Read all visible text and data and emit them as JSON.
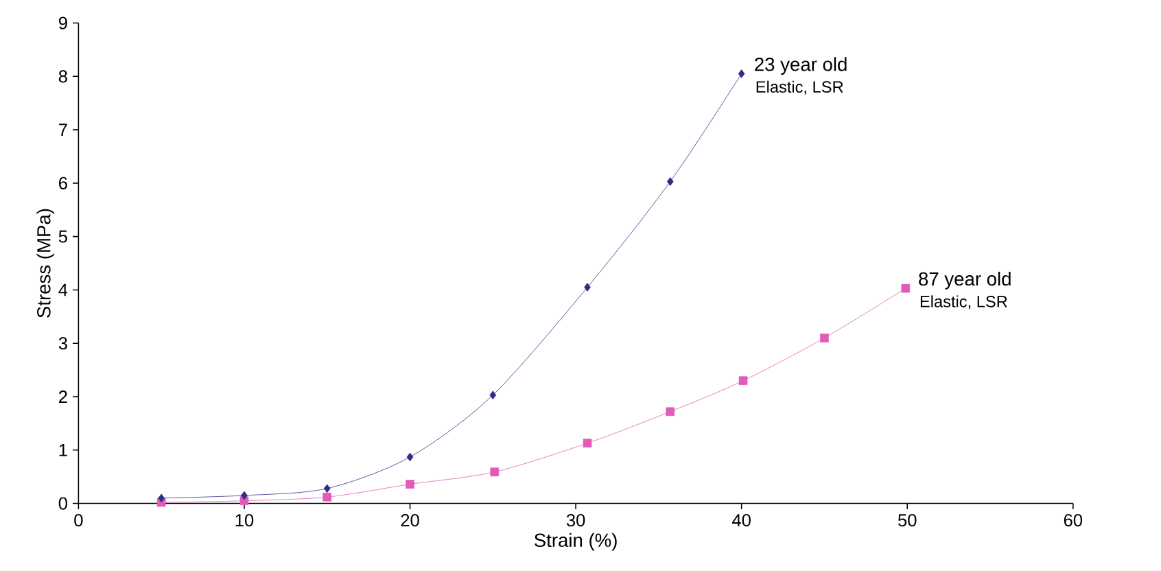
{
  "chart_data": {
    "type": "line",
    "xlabel": "Strain (%)",
    "ylabel": "Stress (MPa)",
    "xlim": [
      0,
      60
    ],
    "xticks": [
      0,
      10,
      20,
      30,
      40,
      50,
      60
    ],
    "ylim": [
      0,
      9
    ],
    "yticks": [
      0,
      1,
      2,
      3,
      4,
      5,
      6,
      7,
      8,
      9
    ],
    "series": [
      {
        "name": "23 year old",
        "color": "#2e2e8a",
        "marker": "diamond",
        "x": [
          5,
          10,
          15,
          20,
          25,
          30.7,
          35.7,
          40
        ],
        "values": [
          0.1,
          0.15,
          0.28,
          0.87,
          2.03,
          4.05,
          6.03,
          8.05
        ]
      },
      {
        "name": "87 year old",
        "color": "#e05cb8",
        "marker": "square",
        "x": [
          5,
          10,
          15,
          20,
          25.1,
          30.7,
          35.7,
          40.1,
          45,
          49.9
        ],
        "values": [
          0.02,
          0.05,
          0.12,
          0.36,
          0.59,
          1.13,
          1.72,
          2.3,
          3.1,
          4.03
        ]
      }
    ],
    "annotations": [
      {
        "text": "Elastic, LSR",
        "x": 40,
        "y": 8.05
      },
      {
        "text": "Elastic, LSR",
        "x": 49.9,
        "y": 4.03
      }
    ],
    "grid": false
  }
}
